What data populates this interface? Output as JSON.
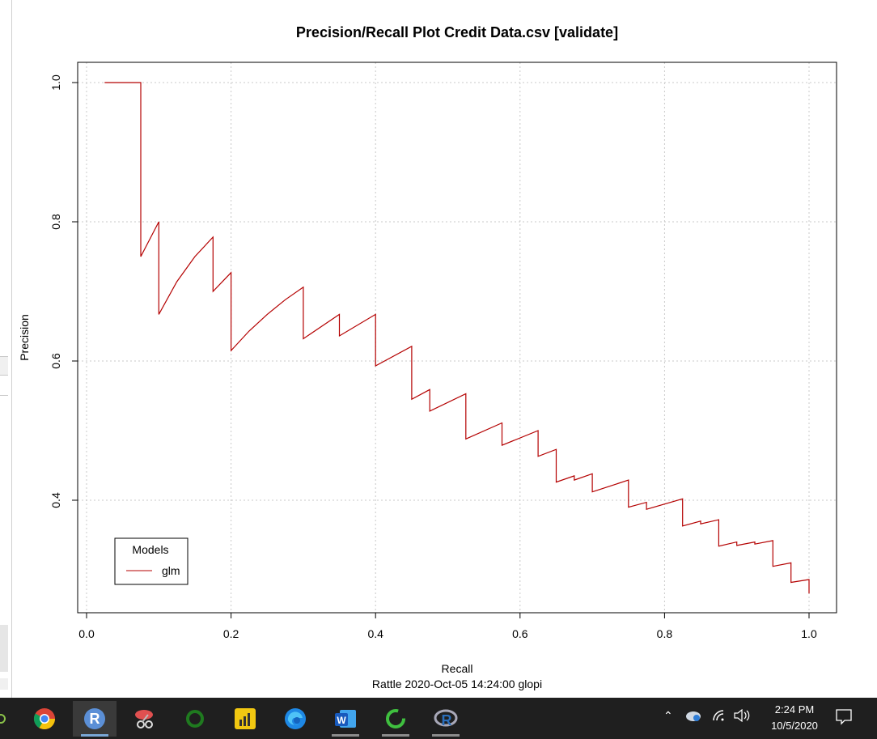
{
  "chart_data": {
    "type": "line",
    "title": "Precision/Recall Plot  Credit Data.csv [validate]",
    "xlabel": "Recall",
    "ylabel": "Precision",
    "subtitle": "Rattle 2020-Oct-05 14:24:00 glopi",
    "xlim": [
      0,
      1
    ],
    "ylim": [
      0.25,
      1.03
    ],
    "xticks": [
      "0.0",
      "0.2",
      "0.4",
      "0.6",
      "0.8",
      "1.0"
    ],
    "yticks": [
      "0.4",
      "0.6",
      "0.8",
      "1.0"
    ],
    "grid": true,
    "legend": {
      "title": "Models",
      "placement": "bottom-left",
      "entries": [
        "glm"
      ]
    },
    "series": [
      {
        "name": "glm",
        "color": "#b40000",
        "points": [
          [
            0.025,
            1.0
          ],
          [
            0.075,
            1.0
          ],
          [
            0.075,
            0.75
          ],
          [
            0.1,
            0.8
          ],
          [
            0.1,
            0.667
          ],
          [
            0.125,
            0.714
          ],
          [
            0.15,
            0.75
          ],
          [
            0.175,
            0.778
          ],
          [
            0.175,
            0.7
          ],
          [
            0.2,
            0.727
          ],
          [
            0.2,
            0.615
          ],
          [
            0.225,
            0.643
          ],
          [
            0.25,
            0.667
          ],
          [
            0.275,
            0.688
          ],
          [
            0.3,
            0.706
          ],
          [
            0.3,
            0.632
          ],
          [
            0.35,
            0.667
          ],
          [
            0.35,
            0.636
          ],
          [
            0.4,
            0.667
          ],
          [
            0.4,
            0.593
          ],
          [
            0.45,
            0.621
          ],
          [
            0.45,
            0.545
          ],
          [
            0.475,
            0.559
          ],
          [
            0.475,
            0.528
          ],
          [
            0.525,
            0.553
          ],
          [
            0.525,
            0.488
          ],
          [
            0.575,
            0.511
          ],
          [
            0.575,
            0.479
          ],
          [
            0.625,
            0.5
          ],
          [
            0.625,
            0.463
          ],
          [
            0.65,
            0.473
          ],
          [
            0.65,
            0.426
          ],
          [
            0.675,
            0.435
          ],
          [
            0.675,
            0.429
          ],
          [
            0.7,
            0.438
          ],
          [
            0.7,
            0.412
          ],
          [
            0.75,
            0.429
          ],
          [
            0.75,
            0.39
          ],
          [
            0.775,
            0.397
          ],
          [
            0.775,
            0.387
          ],
          [
            0.825,
            0.402
          ],
          [
            0.825,
            0.363
          ],
          [
            0.85,
            0.37
          ],
          [
            0.85,
            0.366
          ],
          [
            0.875,
            0.372
          ],
          [
            0.875,
            0.334
          ],
          [
            0.9,
            0.34
          ],
          [
            0.9,
            0.335
          ],
          [
            0.925,
            0.34
          ],
          [
            0.925,
            0.337
          ],
          [
            0.95,
            0.342
          ],
          [
            0.95,
            0.305
          ],
          [
            0.975,
            0.31
          ],
          [
            0.975,
            0.282
          ],
          [
            1.0,
            0.286
          ],
          [
            1.0,
            0.266
          ]
        ]
      }
    ]
  },
  "taskbar": {
    "time": "2:24 PM",
    "date": "10/5/2020",
    "apps": [
      "chrome-icon",
      "r-gui-icon",
      "snipping-tool-icon",
      "green-circle-icon",
      "power-bi-icon",
      "edge-icon",
      "word-icon",
      "refresh-icon",
      "r-icon"
    ]
  }
}
